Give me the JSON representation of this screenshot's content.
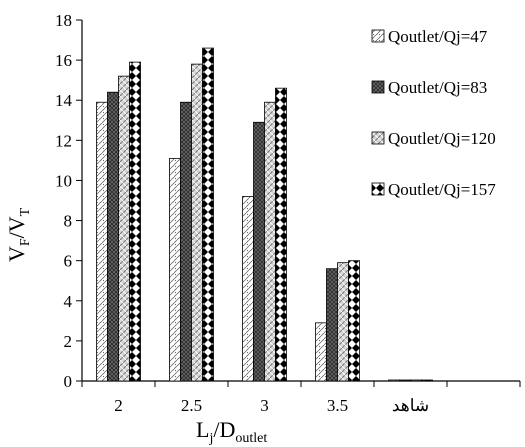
{
  "chart_data": {
    "type": "bar",
    "categories": [
      "2",
      "2.5",
      "3",
      "3.5",
      "شاهد"
    ],
    "series": [
      {
        "name": "Qoutlet/Qj=47",
        "values": [
          13.9,
          11.1,
          9.2,
          2.9,
          0.05
        ],
        "pattern": "dots",
        "color": "#ffffff"
      },
      {
        "name": "Qoutlet/Qj=83",
        "values": [
          14.4,
          13.9,
          12.9,
          5.6,
          0.05
        ],
        "pattern": "dense",
        "color": "#555555"
      },
      {
        "name": "Qoutlet/Qj=120",
        "values": [
          15.2,
          15.8,
          13.9,
          5.9,
          0.05
        ],
        "pattern": "check",
        "color": "#b0b0b0"
      },
      {
        "name": "Qoutlet/Qj=157",
        "values": [
          15.9,
          16.6,
          14.6,
          6.0,
          0.05
        ],
        "pattern": "diamond",
        "color": "#000000"
      }
    ],
    "ylim": [
      0,
      18
    ],
    "y_ticks": [
      "0",
      "2",
      "4",
      "6",
      "8",
      "10",
      "12",
      "14",
      "16",
      "18"
    ],
    "xlabel": {
      "main": "L",
      "sub1": "j",
      "sep": "/D",
      "sub2": "outlet"
    },
    "ylabel": {
      "main1": "V",
      "sub1": "F",
      "sep": "/V",
      "sub2": "T"
    },
    "legend_position": "right",
    "grid": false
  }
}
